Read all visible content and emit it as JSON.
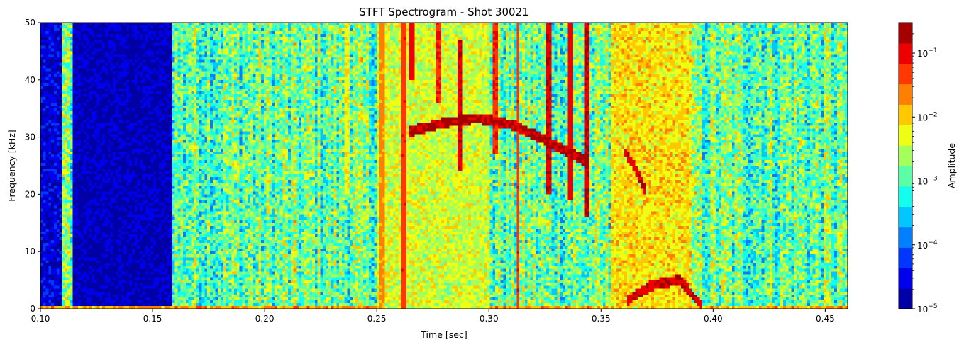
{
  "chart_data": {
    "type": "heatmap",
    "title": "STFT Spectrogram - Shot 30021",
    "xlabel": "Time [sec]",
    "ylabel": "Frequency [kHz]",
    "xlim": [
      0.1,
      0.46
    ],
    "ylim": [
      0,
      50
    ],
    "xticks": [
      "0.10",
      "0.15",
      "0.20",
      "0.25",
      "0.30",
      "0.35",
      "0.40",
      "0.45"
    ],
    "xtick_values": [
      0.1,
      0.15,
      0.2,
      0.25,
      0.3,
      0.35,
      0.4,
      0.45
    ],
    "yticks": [
      "0",
      "10",
      "20",
      "30",
      "40",
      "50"
    ],
    "ytick_values": [
      0,
      10,
      20,
      30,
      40,
      50
    ],
    "colorbar": {
      "label": "Amplitude",
      "scale": "log",
      "range": [
        1e-05,
        0.3
      ],
      "ticks": [
        "10^-5",
        "10^-4",
        "10^-3",
        "10^-2",
        "10^-1"
      ],
      "tick_values": [
        1e-05,
        0.0001,
        0.001,
        0.01,
        0.1
      ],
      "tick_base": "10",
      "tick_exponents": [
        "−5",
        "−4",
        "−3",
        "−2",
        "−1"
      ],
      "colormap": "jet",
      "levels": 14
    },
    "background_amplitude_log10": -2.9,
    "regions": [
      {
        "feature": "low-amplitude band",
        "t": [
          0.115,
          0.159
        ],
        "f": [
          0,
          50
        ],
        "log10_amp": -4.8
      },
      {
        "feature": "low-amplitude band",
        "t": [
          0.1,
          0.109
        ],
        "f": [
          0,
          50
        ],
        "log10_amp": -4.6
      },
      {
        "feature": "low-frequency band",
        "t": [
          0.1,
          0.46
        ],
        "f": [
          0,
          0.6
        ],
        "log10_amp": -1.8
      },
      {
        "feature": "elevated band",
        "t": [
          0.25,
          0.3
        ],
        "f": [
          0,
          50
        ],
        "log10_amp": -2.4
      },
      {
        "feature": "elevated band",
        "t": [
          0.355,
          0.39
        ],
        "f": [
          0,
          50
        ],
        "log10_amp": -2.1
      }
    ],
    "mode_tracks": [
      {
        "points": [
          [
            0.265,
            31.0
          ],
          [
            0.28,
            32.5
          ],
          [
            0.295,
            33.3
          ],
          [
            0.31,
            32.2
          ],
          [
            0.325,
            29.5
          ],
          [
            0.345,
            25.5
          ]
        ],
        "log10_amp": -0.8
      },
      {
        "points": [
          [
            0.36,
            28.0
          ],
          [
            0.366,
            24.0
          ],
          [
            0.37,
            20.5
          ]
        ],
        "log10_amp": -0.9
      },
      {
        "points": [
          [
            0.362,
            1.5
          ],
          [
            0.372,
            4.0
          ],
          [
            0.385,
            5.0
          ],
          [
            0.395,
            0.5
          ]
        ],
        "log10_amp": -0.9
      }
    ],
    "vertical_bursts": [
      {
        "t": 0.237,
        "f": [
          20,
          50
        ],
        "log10_amp": -2.2
      },
      {
        "t": 0.252,
        "f": [
          0,
          50
        ],
        "log10_amp": -1.7
      },
      {
        "t": 0.262,
        "f": [
          0,
          50
        ],
        "log10_amp": -1.3
      },
      {
        "t": 0.266,
        "f": [
          40,
          50
        ],
        "log10_amp": -1.0
      },
      {
        "t": 0.278,
        "f": [
          36,
          50
        ],
        "log10_amp": -1.2
      },
      {
        "t": 0.287,
        "f": [
          24,
          47
        ],
        "log10_amp": -0.9
      },
      {
        "t": 0.303,
        "f": [
          27,
          50
        ],
        "log10_amp": -1.2
      },
      {
        "t": 0.313,
        "f": [
          0,
          50
        ],
        "log10_amp": -1.3
      },
      {
        "t": 0.327,
        "f": [
          20,
          50
        ],
        "log10_amp": -0.9
      },
      {
        "t": 0.336,
        "f": [
          19,
          50
        ],
        "log10_amp": -1.0
      },
      {
        "t": 0.344,
        "f": [
          16,
          50
        ],
        "log10_amp": -0.8
      }
    ],
    "grid": false
  }
}
